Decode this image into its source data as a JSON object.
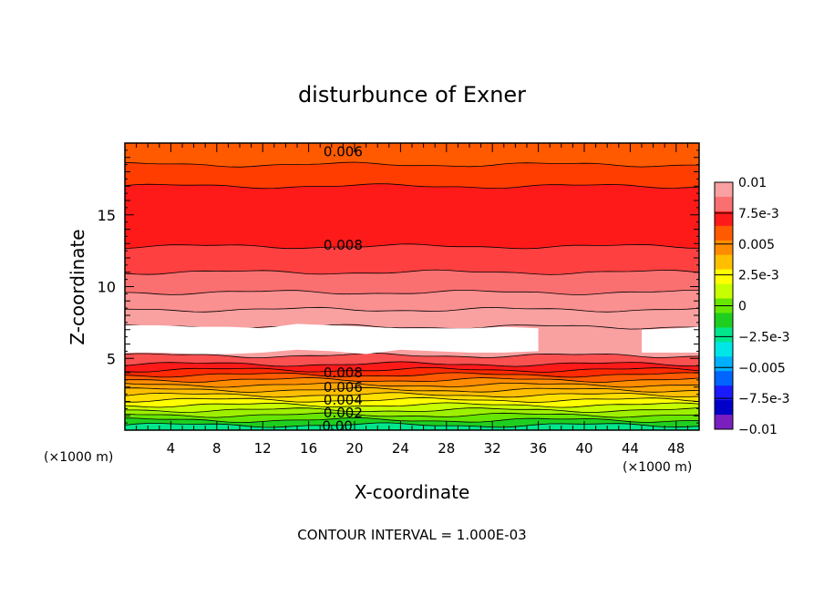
{
  "chart_data": {
    "type": "heatmap",
    "title": "disturbunce of Exner",
    "xlabel": "X-coordinate",
    "ylabel": "Z-coordinate",
    "x_unit_left": "(×1000 m)",
    "x_unit_right": "(×1000 m)",
    "footer": "CONTOUR INTERVAL = 1.000E-03",
    "xlim": [
      0,
      50
    ],
    "ylim": [
      0,
      20
    ],
    "x_ticks": [
      "4",
      "8",
      "12",
      "16",
      "20",
      "24",
      "28",
      "32",
      "36",
      "40",
      "44",
      "48"
    ],
    "y_ticks": [
      "5",
      "10",
      "15"
    ],
    "colorbar": {
      "labels": [
        "0.01",
        "7.5e-3",
        "0.005",
        "2.5e-3",
        "0",
        "−2.5e-3",
        "−0.005",
        "−7.5e-3",
        "−0.01"
      ],
      "colors": [
        "#f9a0a0",
        "#fa7070",
        "#ff1a1a",
        "#ff5a00",
        "#ff8c00",
        "#ffbf00",
        "#ffff00",
        "#c8ff00",
        "#66e600",
        "#1fcf1f",
        "#00e68c",
        "#00e6e6",
        "#00b0ff",
        "#0064ff",
        "#1a1aff",
        "#0000c8",
        "#7a1fbf"
      ]
    },
    "contour_labels": [
      {
        "text": "0.006",
        "x": 19.0,
        "z": 19.4
      },
      {
        "text": "0.008",
        "x": 19.0,
        "z": 12.9
      },
      {
        "text": "0.008",
        "x": 19.0,
        "z": 4.0
      },
      {
        "text": "0.006",
        "x": 19.0,
        "z": 3.0
      },
      {
        "text": "0.004",
        "x": 19.0,
        "z": 2.1
      },
      {
        "text": "0.002",
        "x": 19.0,
        "z": 1.2
      },
      {
        "text": "0.00",
        "x": 18.5,
        "z": 0.3
      }
    ],
    "layers": [
      {
        "z0": 0.0,
        "z1": 0.35,
        "value": 0.0,
        "color": "#00e68c"
      },
      {
        "z0": 0.35,
        "z1": 0.7,
        "value": 0.0005,
        "color": "#1fcf1f"
      },
      {
        "z0": 0.7,
        "z1": 1.05,
        "value": 0.001,
        "color": "#66e600"
      },
      {
        "z0": 1.05,
        "z1": 1.4,
        "value": 0.0015,
        "color": "#9ef000"
      },
      {
        "z0": 1.4,
        "z1": 1.75,
        "value": 0.002,
        "color": "#c8ff00"
      },
      {
        "z0": 1.75,
        "z1": 2.1,
        "value": 0.0025,
        "color": "#ffff00"
      },
      {
        "z0": 2.1,
        "z1": 2.45,
        "value": 0.003,
        "color": "#ffdf00"
      },
      {
        "z0": 2.45,
        "z1": 2.8,
        "value": 0.0035,
        "color": "#ffbf00"
      },
      {
        "z0": 2.8,
        "z1": 3.15,
        "value": 0.004,
        "color": "#ffa500"
      },
      {
        "z0": 3.15,
        "z1": 3.5,
        "value": 0.005,
        "color": "#ff8c00"
      },
      {
        "z0": 3.5,
        "z1": 3.85,
        "value": 0.006,
        "color": "#ff5a00"
      },
      {
        "z0": 3.85,
        "z1": 4.2,
        "value": 0.007,
        "color": "#ff2a00"
      },
      {
        "z0": 4.2,
        "z1": 4.6,
        "value": 0.0075,
        "color": "#ff1a1a"
      },
      {
        "z0": 4.6,
        "z1": 5.2,
        "value": 0.008,
        "color": "#fa5050"
      },
      {
        "z0": 5.2,
        "z1": 7.2,
        "value": 0.009,
        "color": "#f9a0a0"
      },
      {
        "z0": 7.2,
        "z1": 8.4,
        "value": 0.0095,
        "color": "#f9a0a0"
      },
      {
        "z0": 8.4,
        "z1": 9.6,
        "value": 0.009,
        "color": "#fa9090"
      },
      {
        "z0": 9.6,
        "z1": 11.0,
        "value": 0.0085,
        "color": "#fa7070"
      },
      {
        "z0": 11.0,
        "z1": 12.8,
        "value": 0.008,
        "color": "#ff4040"
      },
      {
        "z0": 12.8,
        "z1": 17.0,
        "value": 0.0075,
        "color": "#ff1a1a"
      },
      {
        "z0": 17.0,
        "z1": 18.5,
        "value": 0.007,
        "color": "#ff3d00"
      },
      {
        "z0": 18.5,
        "z1": 20.0,
        "value": 0.006,
        "color": "#ff5a00"
      }
    ],
    "blank_region": {
      "note": "white = outside colour scale (> 0.01)",
      "z_low": [
        5.4,
        5.4,
        5.3,
        5.3,
        5.4,
        5.6,
        5.5,
        5.3,
        5.6,
        5.5,
        5.4,
        5.4,
        5.5,
        5.6,
        5.5,
        5.4,
        5.4,
        5.4
      ],
      "z_high": [
        7.3,
        7.3,
        7.2,
        7.2,
        7.1,
        7.4,
        7.3,
        7.2,
        7.1,
        7.1,
        7.1,
        7.2,
        7.1,
        7.0,
        7.0,
        7.0,
        7.1,
        7.2
      ],
      "x": [
        0,
        3,
        6,
        9,
        12,
        15,
        18,
        21,
        24,
        27,
        30,
        33,
        36,
        39,
        42,
        45,
        48,
        50
      ],
      "gap_x": [
        36.5,
        42.5
      ]
    }
  }
}
